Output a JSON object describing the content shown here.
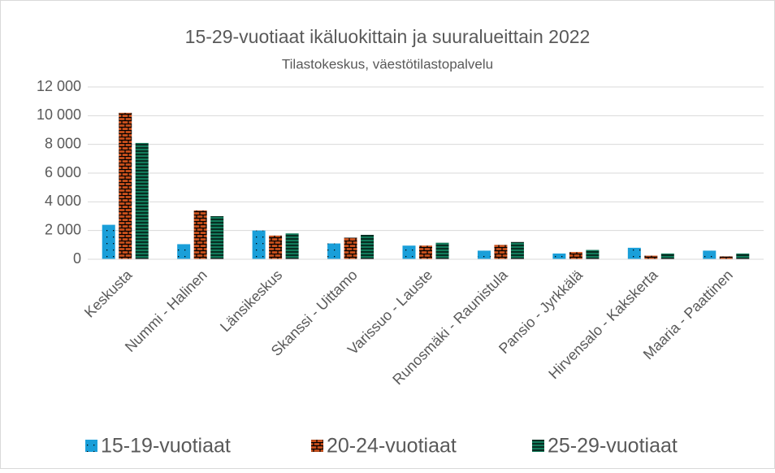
{
  "chart_data": {
    "type": "bar",
    "title": "15-29-vuotiaat ikäluokittain ja suuralueittain 2022",
    "subtitle": "Tilastokeskus, väestötilastopalvelu",
    "categories": [
      "Keskusta",
      "Nummi - Halinen",
      "Länsikeskus",
      "Skanssi - Uittamo",
      "Varissuo - Lauste",
      "Runosmäki - Raunistula",
      "Pansio - Jyrkkälä",
      "Hirvensalo - Kakskerta",
      "Maaria - Paattinen"
    ],
    "series": [
      {
        "name": "15-19-vuotiaat",
        "color": "#1a9fd9",
        "values": [
          2400,
          1050,
          2000,
          1100,
          950,
          600,
          400,
          800,
          600
        ]
      },
      {
        "name": "20-24-vuotiaat",
        "color": "#c9501c",
        "values": [
          10200,
          3400,
          1650,
          1500,
          950,
          1000,
          500,
          250,
          200
        ]
      },
      {
        "name": "25-29-vuotiaat",
        "color": "#127a5a",
        "values": [
          8100,
          3000,
          1800,
          1700,
          1150,
          1200,
          650,
          400,
          400
        ]
      }
    ],
    "ylim": [
      0,
      12000
    ],
    "yticks": [
      0,
      {
        "value": 2000,
        "label": "2 000"
      },
      {
        "value": 4000,
        "label": "4 000"
      },
      {
        "value": 6000,
        "label": "6 000"
      },
      {
        "value": 8000,
        "label": "8 000"
      },
      {
        "value": 10000,
        "label": "10 000"
      },
      {
        "value": 12000,
        "label": "12 000"
      }
    ],
    "grid": true,
    "legend": "bottom"
  }
}
